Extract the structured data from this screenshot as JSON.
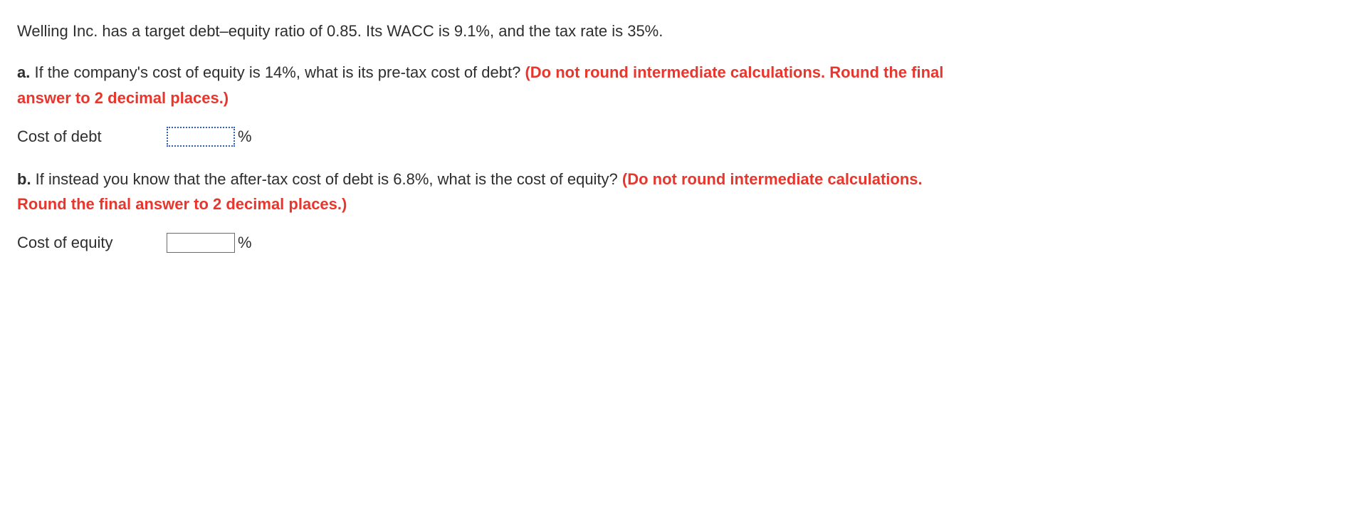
{
  "intro": "Welling Inc. has a target debt–equity ratio of 0.85. Its WACC is 9.1%, and the tax rate is 35%.",
  "qa": {
    "marker": "a.",
    "text": " If the company's cost of equity is 14%, what is its pre-tax cost of debt? ",
    "instr_part1": "(Do not round intermediate calculations. Round the final",
    "instr_part2": "answer to 2 decimal places.)",
    "answer_label": "Cost of debt",
    "unit": "%"
  },
  "qb": {
    "marker": "b.",
    "text": " If instead you know that the after-tax cost of debt is 6.8%, what is the cost of equity? ",
    "instr_part1": "(Do not round intermediate calculations.",
    "instr_part2": "Round the final answer to 2 decimal places.)",
    "answer_label": "Cost of equity",
    "unit": "%"
  },
  "colors": {
    "text": "#2e2e2e",
    "instr": "#e8362d",
    "active_border": "#2b5fc0",
    "input_border": "#6b6b6b",
    "background": "#ffffff"
  }
}
